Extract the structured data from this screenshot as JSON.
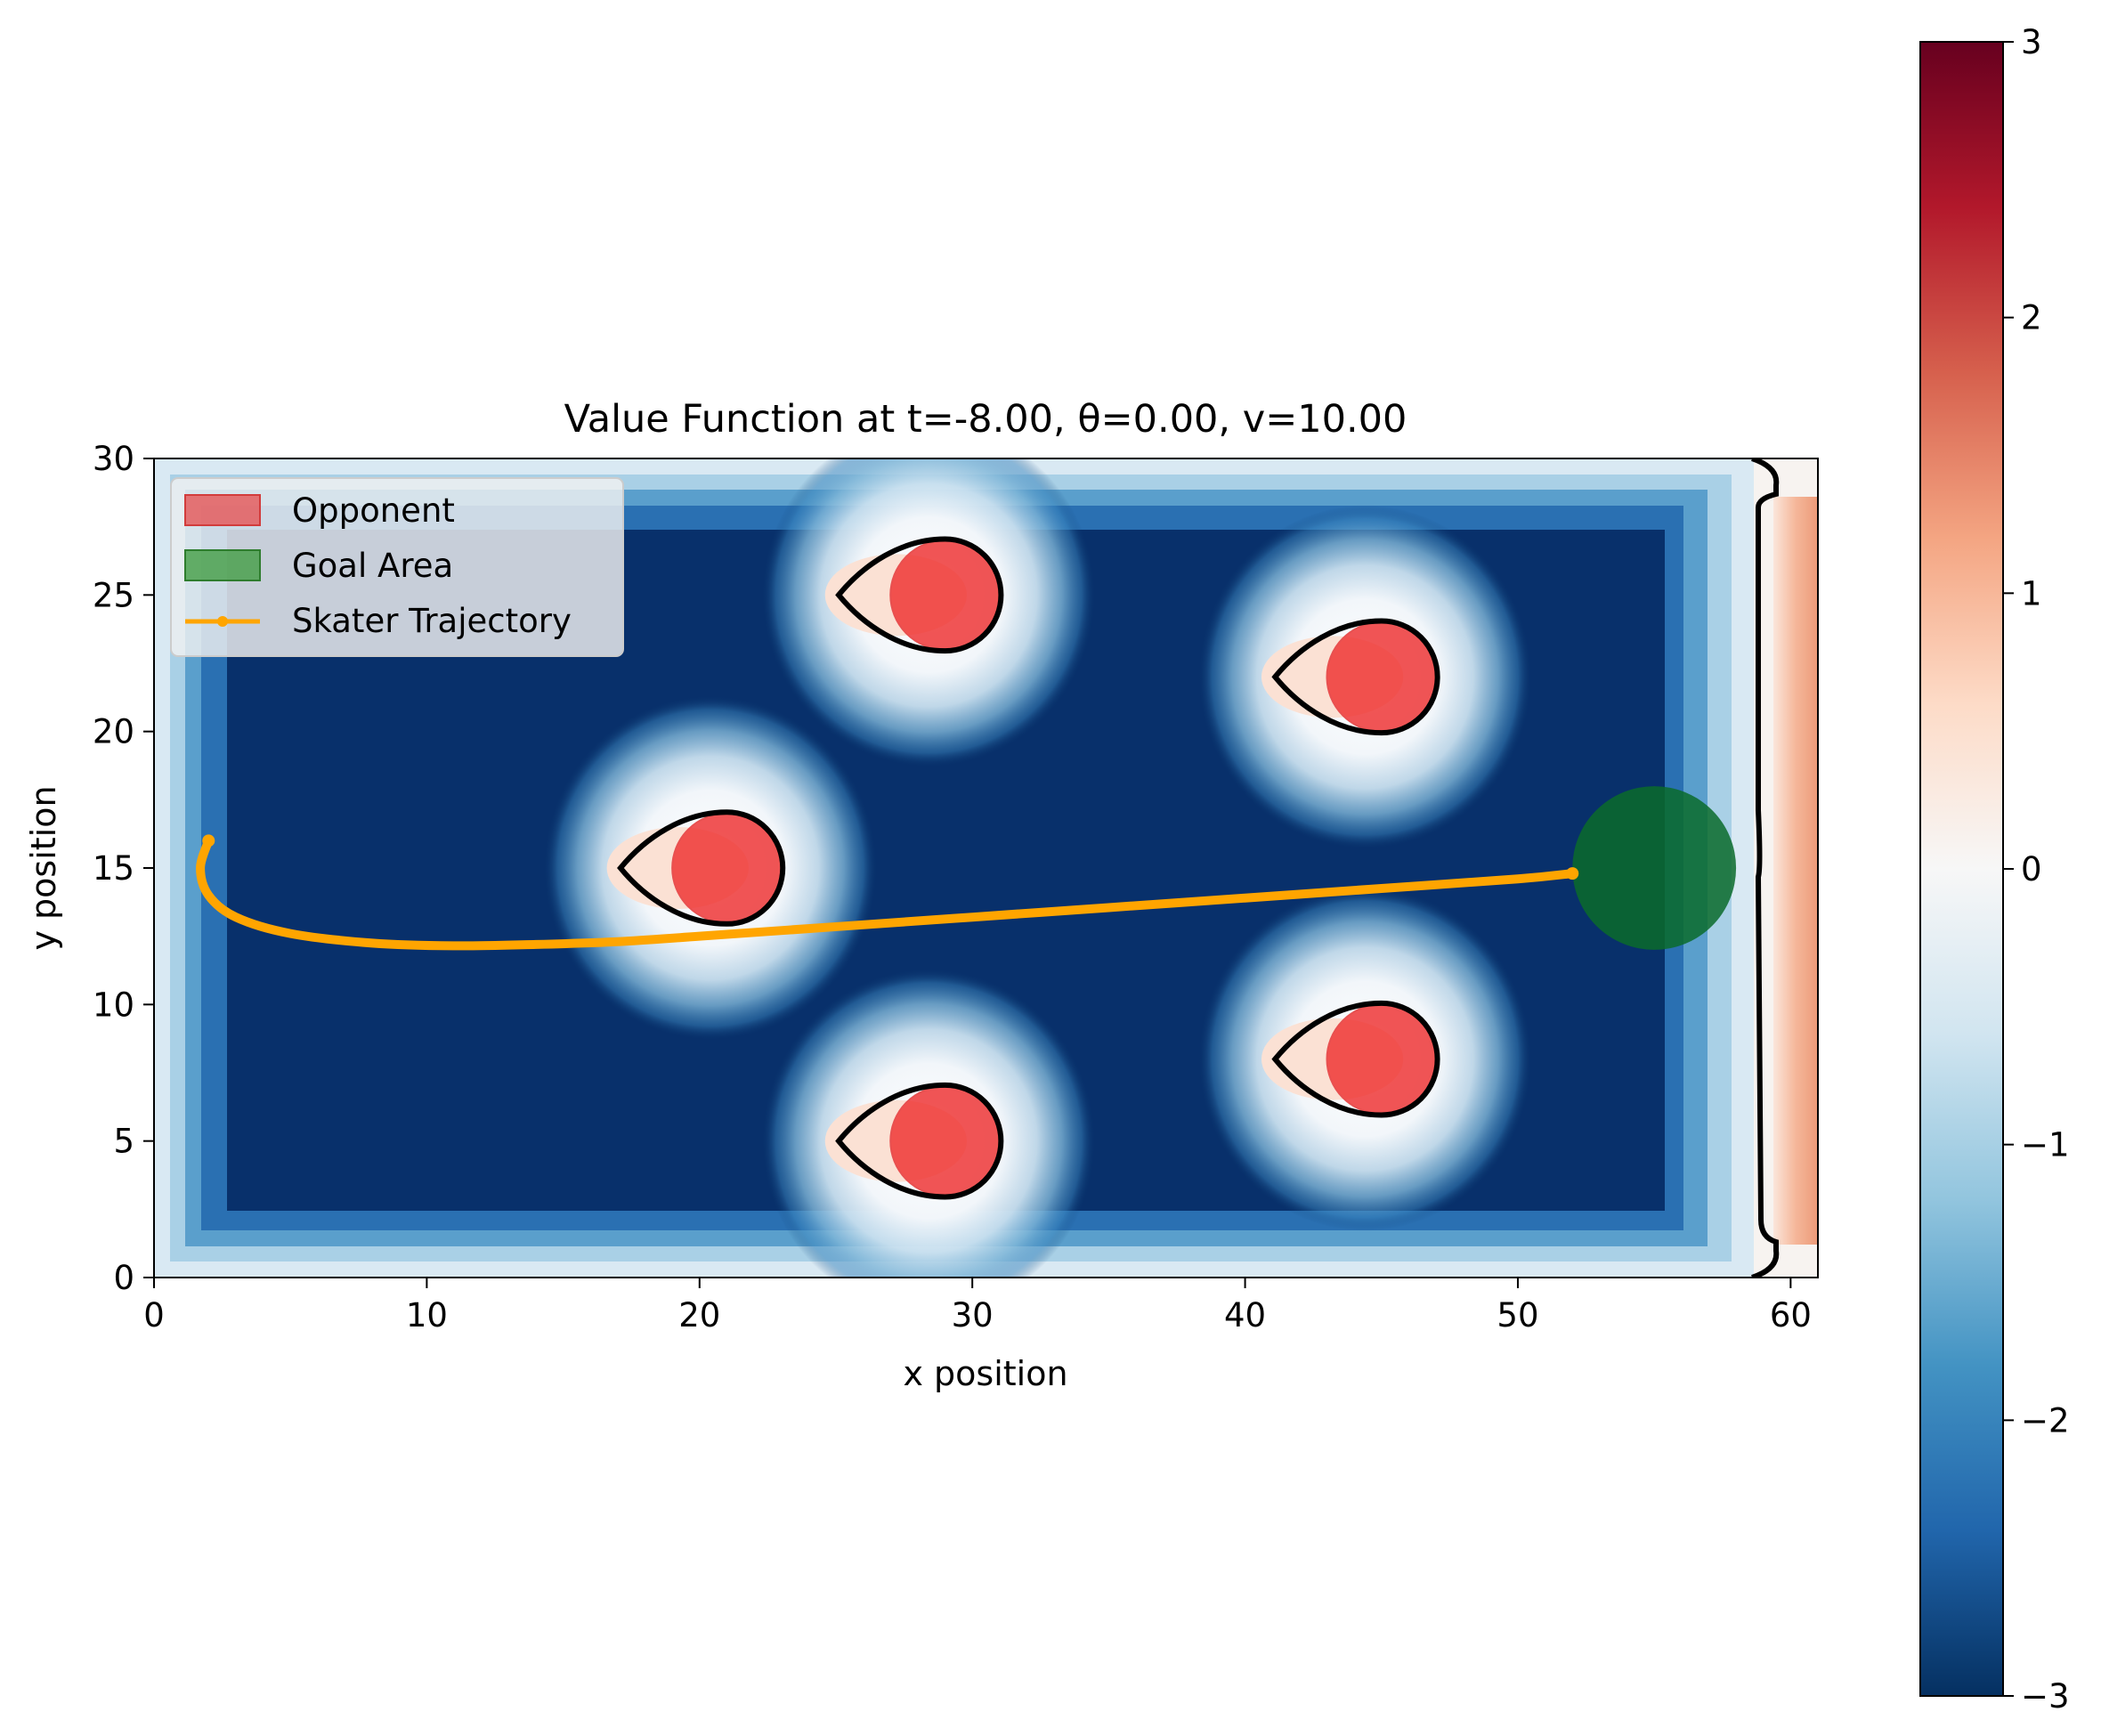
{
  "chart_data": {
    "type": "heatmap",
    "title": "Value Function at t=-8.00, θ=0.00, v=10.00",
    "xlabel": "x position",
    "ylabel": "y position",
    "xlim": [
      0,
      61
    ],
    "ylim": [
      0,
      30
    ],
    "xticks": [
      0,
      10,
      20,
      30,
      40,
      50,
      60
    ],
    "yticks": [
      0,
      5,
      10,
      15,
      20,
      25,
      30
    ],
    "colorbar": {
      "colormap": "RdBu_r",
      "range": [
        -3,
        3
      ],
      "ticks": [
        "−3",
        "−2",
        "−1",
        "0",
        "1",
        "2",
        "3"
      ]
    },
    "opponents": [
      {
        "x": 29,
        "y": 25
      },
      {
        "x": 45,
        "y": 22
      },
      {
        "x": 21,
        "y": 15
      },
      {
        "x": 29,
        "y": 5
      },
      {
        "x": 45,
        "y": 8
      }
    ],
    "opponent_radius": 2,
    "goal_area": {
      "x": 55,
      "y": 15,
      "r": 3
    },
    "trajectory": {
      "x": [
        2.0,
        1.7,
        2.0,
        3.0,
        5.0,
        8.0,
        11.0,
        14.0,
        17.0,
        20.0,
        25.0,
        30.0,
        35.0,
        40.0,
        45.0,
        50.0,
        52.0
      ],
      "y": [
        16.0,
        15.0,
        14.0,
        13.2,
        12.6,
        12.25,
        12.15,
        12.2,
        12.3,
        12.5,
        12.85,
        13.2,
        13.55,
        13.9,
        14.25,
        14.6,
        14.8
      ]
    },
    "legend": {
      "position": "upper-left",
      "entries": [
        {
          "label": "Opponent",
          "color": "#e74c4c"
        },
        {
          "label": "Goal Area",
          "color": "#3a9a3a"
        },
        {
          "label": "Skater Trajectory",
          "color": "#ffa500"
        }
      ]
    },
    "colors": {
      "trajectory": "#ffa500",
      "goal": "#0b6b2a",
      "opponent": "#ee3030",
      "contour": "#000000"
    }
  }
}
